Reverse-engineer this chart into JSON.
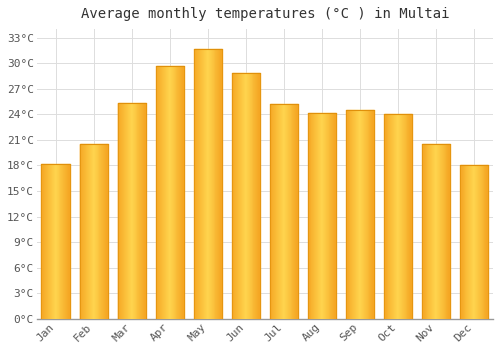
{
  "title": "Average monthly temperatures (°C ) in Multai",
  "months": [
    "Jan",
    "Feb",
    "Mar",
    "Apr",
    "May",
    "Jun",
    "Jul",
    "Aug",
    "Sep",
    "Oct",
    "Nov",
    "Dec"
  ],
  "values": [
    18.2,
    20.5,
    25.3,
    29.7,
    31.7,
    28.8,
    25.2,
    24.1,
    24.5,
    24.0,
    20.5,
    18.1
  ],
  "bar_color_left": "#F5A623",
  "bar_color_center": "#FFD54F",
  "bar_color_right": "#F5A623",
  "bar_edge_color": "#E0900A",
  "bar_width": 0.75,
  "ylim": [
    0,
    34
  ],
  "yticks": [
    0,
    3,
    6,
    9,
    12,
    15,
    18,
    21,
    24,
    27,
    30,
    33
  ],
  "grid_color": "#dddddd",
  "background_color": "#ffffff",
  "title_fontsize": 10,
  "tick_fontsize": 8,
  "font_family": "monospace",
  "title_color": "#333333",
  "tick_color": "#555555"
}
